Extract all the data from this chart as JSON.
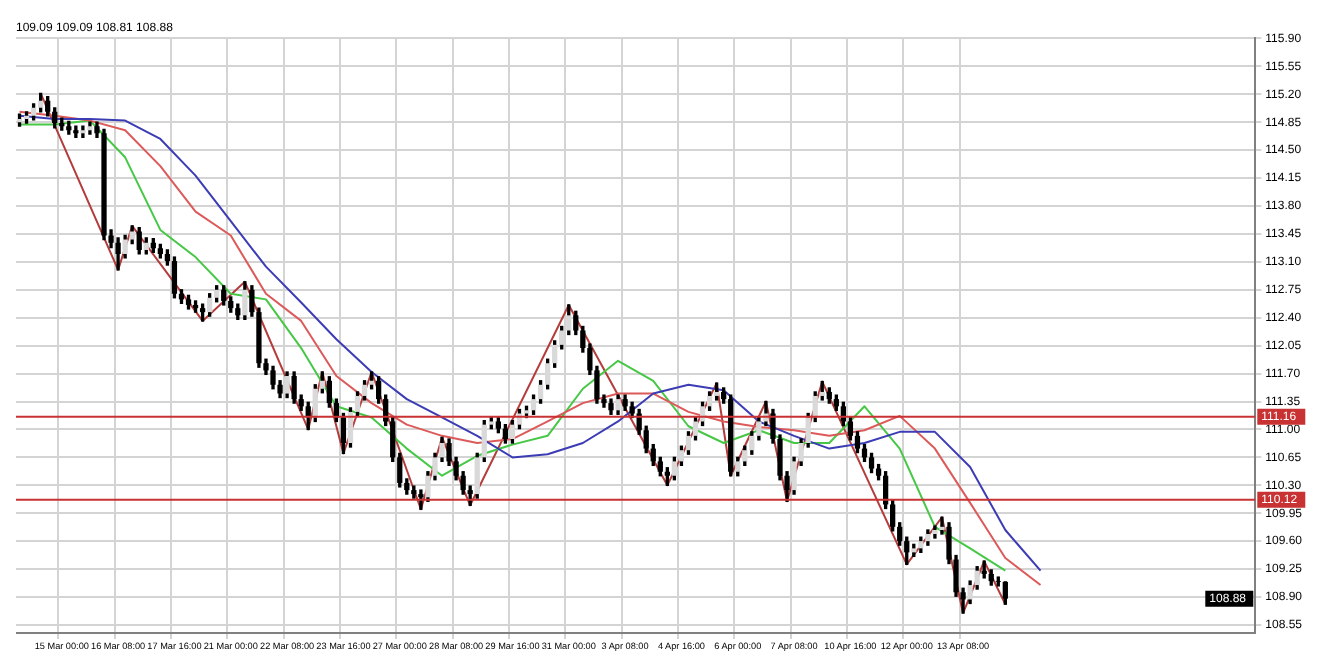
{
  "chart_data": {
    "type": "candlestick",
    "title": "109.09 109.09 108.81 108.88",
    "categories": [
      null,
      null,
      null,
      null,
      null,
      null,
      "15 Mar 00:00",
      null,
      null,
      null,
      null,
      null,
      null,
      null,
      "16 Mar 08:00",
      null,
      null,
      null,
      null,
      null,
      null,
      null,
      "17 Mar 16:00",
      null,
      null,
      null,
      null,
      null,
      null,
      null,
      "21 Mar 00:00",
      null,
      null,
      null,
      null,
      null,
      null,
      null,
      "22 Mar 08:00",
      null,
      null,
      null,
      null,
      null,
      null,
      null,
      "23 Mar 16:00",
      null,
      null,
      null,
      null,
      null,
      null,
      null,
      "27 Mar 00:00",
      null,
      null,
      null,
      null,
      null,
      null,
      null,
      "28 Mar 08:00",
      null,
      null,
      null,
      null,
      null,
      null,
      null,
      "29 Mar 16:00",
      null,
      null,
      null,
      null,
      null,
      null,
      null,
      "31 Mar 00:00",
      null,
      null,
      null,
      null,
      null,
      null,
      null,
      "3 Apr 08:00",
      null,
      null,
      null,
      null,
      null,
      null,
      null,
      "4 Apr 16:00",
      null,
      null,
      null,
      null,
      null,
      null,
      null,
      "6 Apr 00:00",
      null,
      null,
      null,
      null,
      null,
      null,
      null,
      "7 Apr 08:00",
      null,
      null,
      null,
      null,
      null,
      null,
      null,
      "10 Apr 16:00",
      null,
      null,
      null,
      null,
      null,
      null,
      null,
      "12 Apr 00:00",
      null,
      null,
      null,
      null,
      null,
      null,
      null,
      "13 Apr 08:00",
      null,
      null,
      null,
      null,
      null,
      null,
      null,
      null,
      null,
      null,
      null,
      null,
      null,
      null,
      null,
      null,
      null,
      null,
      null,
      null,
      null,
      null,
      null,
      null,
      null,
      null,
      null,
      null,
      null,
      null,
      null,
      null,
      null,
      null,
      null,
      null,
      null,
      null,
      null,
      null,
      null
    ],
    "ohlc": [
      [
        114.85,
        114.95,
        114.8,
        114.89
      ],
      [
        114.89,
        114.98,
        114.84,
        114.93
      ],
      [
        114.93,
        115.08,
        114.88,
        115.03
      ],
      [
        115.03,
        115.21,
        114.98,
        115.12
      ],
      [
        115.12,
        115.17,
        114.93,
        114.98
      ],
      [
        114.98,
        115.03,
        114.78,
        114.84
      ],
      [
        114.84,
        114.9,
        114.75,
        114.8
      ],
      [
        114.8,
        114.86,
        114.7,
        114.75
      ],
      [
        114.75,
        114.8,
        114.66,
        114.71
      ],
      [
        114.71,
        114.8,
        114.66,
        114.75
      ],
      [
        114.75,
        114.85,
        114.7,
        114.8
      ],
      [
        114.8,
        114.85,
        114.66,
        114.71
      ],
      [
        114.71,
        114.76,
        113.38,
        113.43
      ],
      [
        113.43,
        113.5,
        113.28,
        113.34
      ],
      [
        113.34,
        113.4,
        113.0,
        113.2
      ],
      [
        113.2,
        113.43,
        113.15,
        113.38
      ],
      [
        113.38,
        113.55,
        113.33,
        113.48
      ],
      [
        113.48,
        113.53,
        113.2,
        113.25
      ],
      [
        113.25,
        113.4,
        113.2,
        113.34
      ],
      [
        113.34,
        113.39,
        113.22,
        113.27
      ],
      [
        113.27,
        113.32,
        113.15,
        113.2
      ],
      [
        113.2,
        113.25,
        113.06,
        113.11
      ],
      [
        113.11,
        113.16,
        112.65,
        112.7
      ],
      [
        112.7,
        112.75,
        112.58,
        112.63
      ],
      [
        112.63,
        112.68,
        112.51,
        112.56
      ],
      [
        112.56,
        112.61,
        112.47,
        112.52
      ],
      [
        112.52,
        112.57,
        112.36,
        112.47
      ],
      [
        112.47,
        112.7,
        112.42,
        112.65
      ],
      [
        112.65,
        112.8,
        112.6,
        112.75
      ],
      [
        112.75,
        112.8,
        112.56,
        112.61
      ],
      [
        112.61,
        112.66,
        112.47,
        112.52
      ],
      [
        112.52,
        112.57,
        112.38,
        112.43
      ],
      [
        112.43,
        112.85,
        112.38,
        112.75
      ],
      [
        112.75,
        112.8,
        112.42,
        112.47
      ],
      [
        112.47,
        112.52,
        111.78,
        111.83
      ],
      [
        111.83,
        111.88,
        111.69,
        111.74
      ],
      [
        111.74,
        111.79,
        111.51,
        111.56
      ],
      [
        111.56,
        111.61,
        111.4,
        111.45
      ],
      [
        111.45,
        111.72,
        111.4,
        111.67
      ],
      [
        111.67,
        111.72,
        111.33,
        111.38
      ],
      [
        111.38,
        111.43,
        111.24,
        111.29
      ],
      [
        111.29,
        111.34,
        111.0,
        111.15
      ],
      [
        111.15,
        111.56,
        111.1,
        111.51
      ],
      [
        111.51,
        111.72,
        111.46,
        111.61
      ],
      [
        111.61,
        111.66,
        111.28,
        111.33
      ],
      [
        111.33,
        111.38,
        111.1,
        111.15
      ],
      [
        111.15,
        111.2,
        110.7,
        110.83
      ],
      [
        110.83,
        111.27,
        110.78,
        111.22
      ],
      [
        111.22,
        111.47,
        111.17,
        111.42
      ],
      [
        111.42,
        111.61,
        111.37,
        111.56
      ],
      [
        111.56,
        111.72,
        111.51,
        111.61
      ],
      [
        111.61,
        111.66,
        111.33,
        111.38
      ],
      [
        111.38,
        111.43,
        111.05,
        111.1
      ],
      [
        111.1,
        111.15,
        110.6,
        110.65
      ],
      [
        110.65,
        110.7,
        110.28,
        110.33
      ],
      [
        110.33,
        110.38,
        110.19,
        110.24
      ],
      [
        110.24,
        110.29,
        110.14,
        110.19
      ],
      [
        110.19,
        110.24,
        110.0,
        110.15
      ],
      [
        110.15,
        110.47,
        110.1,
        110.42
      ],
      [
        110.42,
        110.7,
        110.37,
        110.65
      ],
      [
        110.65,
        110.9,
        110.6,
        110.83
      ],
      [
        110.83,
        110.88,
        110.55,
        110.6
      ],
      [
        110.6,
        110.65,
        110.37,
        110.42
      ],
      [
        110.42,
        110.47,
        110.19,
        110.24
      ],
      [
        110.24,
        110.29,
        110.05,
        110.19
      ],
      [
        110.19,
        110.7,
        110.14,
        110.65
      ],
      [
        110.65,
        111.11,
        110.6,
        111.06
      ],
      [
        111.06,
        111.15,
        111.01,
        111.1
      ],
      [
        111.1,
        111.15,
        110.96,
        111.01
      ],
      [
        111.01,
        111.06,
        110.83,
        110.88
      ],
      [
        110.88,
        111.11,
        110.83,
        111.06
      ],
      [
        111.06,
        111.25,
        111.01,
        111.2
      ],
      [
        111.2,
        111.29,
        111.15,
        111.24
      ],
      [
        111.24,
        111.43,
        111.19,
        111.38
      ],
      [
        111.38,
        111.61,
        111.33,
        111.56
      ],
      [
        111.56,
        111.88,
        111.51,
        111.83
      ],
      [
        111.83,
        112.11,
        111.78,
        112.06
      ],
      [
        112.06,
        112.29,
        112.01,
        112.24
      ],
      [
        112.24,
        112.56,
        112.19,
        112.43
      ],
      [
        112.43,
        112.48,
        112.19,
        112.24
      ],
      [
        112.24,
        112.29,
        111.97,
        112.02
      ],
      [
        112.02,
        112.07,
        111.69,
        111.74
      ],
      [
        111.74,
        111.79,
        111.33,
        111.38
      ],
      [
        111.38,
        111.43,
        111.28,
        111.33
      ],
      [
        111.33,
        111.38,
        111.19,
        111.24
      ],
      [
        111.24,
        111.43,
        111.19,
        111.38
      ],
      [
        111.38,
        111.43,
        111.24,
        111.29
      ],
      [
        111.29,
        111.34,
        111.15,
        111.2
      ],
      [
        111.2,
        111.25,
        110.94,
        110.99
      ],
      [
        110.99,
        111.04,
        110.71,
        110.76
      ],
      [
        110.76,
        110.81,
        110.55,
        110.6
      ],
      [
        110.6,
        110.65,
        110.42,
        110.47
      ],
      [
        110.47,
        110.52,
        110.3,
        110.42
      ],
      [
        110.42,
        110.65,
        110.37,
        110.6
      ],
      [
        110.6,
        110.79,
        110.55,
        110.74
      ],
      [
        110.74,
        110.97,
        110.69,
        110.92
      ],
      [
        110.92,
        111.15,
        110.87,
        111.1
      ],
      [
        111.1,
        111.34,
        111.05,
        111.29
      ],
      [
        111.29,
        111.47,
        111.24,
        111.42
      ],
      [
        111.42,
        111.58,
        111.37,
        111.47
      ],
      [
        111.47,
        111.52,
        111.33,
        111.38
      ],
      [
        111.38,
        111.43,
        110.42,
        110.47
      ],
      [
        110.47,
        110.65,
        110.42,
        110.6
      ],
      [
        110.6,
        110.79,
        110.55,
        110.74
      ],
      [
        110.74,
        110.97,
        110.69,
        110.92
      ],
      [
        110.92,
        111.15,
        110.87,
        111.1
      ],
      [
        111.1,
        111.35,
        111.05,
        111.2
      ],
      [
        111.2,
        111.25,
        110.83,
        110.88
      ],
      [
        110.88,
        110.93,
        110.37,
        110.42
      ],
      [
        110.42,
        110.47,
        110.1,
        110.24
      ],
      [
        110.24,
        110.65,
        110.19,
        110.6
      ],
      [
        110.6,
        110.88,
        110.55,
        110.83
      ],
      [
        110.83,
        111.2,
        110.78,
        111.15
      ],
      [
        111.15,
        111.47,
        111.1,
        111.42
      ],
      [
        111.42,
        111.6,
        111.37,
        111.47
      ],
      [
        111.47,
        111.52,
        111.33,
        111.38
      ],
      [
        111.38,
        111.43,
        111.24,
        111.29
      ],
      [
        111.29,
        111.34,
        111.05,
        111.1
      ],
      [
        111.1,
        111.15,
        110.87,
        110.92
      ],
      [
        110.92,
        110.97,
        110.71,
        110.76
      ],
      [
        110.76,
        110.81,
        110.6,
        110.65
      ],
      [
        110.65,
        110.7,
        110.46,
        110.51
      ],
      [
        110.51,
        110.56,
        110.37,
        110.42
      ],
      [
        110.42,
        110.47,
        110.01,
        110.06
      ],
      [
        110.06,
        110.11,
        109.73,
        109.78
      ],
      [
        109.78,
        109.83,
        109.55,
        109.6
      ],
      [
        109.6,
        109.65,
        109.31,
        109.46
      ],
      [
        109.46,
        109.56,
        109.41,
        109.51
      ],
      [
        109.51,
        109.65,
        109.46,
        109.6
      ],
      [
        109.6,
        109.74,
        109.55,
        109.69
      ],
      [
        109.69,
        109.79,
        109.64,
        109.74
      ],
      [
        109.74,
        109.9,
        109.69,
        109.78
      ],
      [
        109.78,
        109.83,
        109.32,
        109.37
      ],
      [
        109.37,
        109.42,
        108.91,
        108.96
      ],
      [
        108.96,
        109.01,
        108.7,
        108.87
      ],
      [
        108.87,
        109.1,
        108.82,
        109.05
      ],
      [
        109.05,
        109.28,
        109.0,
        109.23
      ],
      [
        109.23,
        109.35,
        109.14,
        109.19
      ],
      [
        109.19,
        109.24,
        109.05,
        109.1
      ],
      [
        109.1,
        109.15,
        109.04,
        109.09
      ],
      [
        109.09,
        109.09,
        108.81,
        108.88
      ],
      null,
      null,
      null,
      null,
      null,
      null,
      null,
      null,
      null,
      null,
      null,
      null,
      null,
      null,
      null,
      null,
      null,
      null,
      null,
      null,
      null,
      null,
      null,
      null,
      null,
      null,
      null,
      null,
      null,
      null,
      null,
      null,
      null,
      null,
      null
    ],
    "colors": [
      "#d9d9d9",
      "#d9d9d9",
      "#d9d9d9",
      "#d9d9d9",
      "#000000",
      "#000000",
      "#000000",
      "#000000",
      "#000000",
      "#d9d9d9",
      "#d9d9d9",
      "#000000",
      "#000000",
      "#000000",
      "#000000",
      "#d9d9d9",
      "#d9d9d9",
      "#000000",
      "#d9d9d9",
      "#000000",
      "#000000",
      "#000000",
      "#000000",
      "#000000",
      "#000000",
      "#000000",
      "#000000",
      "#d9d9d9",
      "#d9d9d9",
      "#000000",
      "#000000",
      "#000000",
      "#d9d9d9",
      "#000000",
      "#000000",
      "#000000",
      "#000000",
      "#000000",
      "#d9d9d9",
      "#000000",
      "#000000",
      "#000000",
      "#d9d9d9",
      "#d9d9d9",
      "#000000",
      "#000000",
      "#000000",
      "#d9d9d9",
      "#d9d9d9",
      "#d9d9d9",
      "#d9d9d9",
      "#000000",
      "#000000",
      "#000000",
      "#000000",
      "#000000",
      "#000000",
      "#000000",
      "#d9d9d9",
      "#d9d9d9",
      "#d9d9d9",
      "#000000",
      "#000000",
      "#000000",
      "#000000",
      "#d9d9d9",
      "#d9d9d9",
      "#d9d9d9",
      "#000000",
      "#000000",
      "#d9d9d9",
      "#d9d9d9",
      "#d9d9d9",
      "#d9d9d9",
      "#d9d9d9",
      "#d9d9d9",
      "#d9d9d9",
      "#d9d9d9",
      "#d9d9d9",
      "#000000",
      "#000000",
      "#000000",
      "#000000",
      "#000000",
      "#000000",
      "#d9d9d9",
      "#000000",
      "#000000",
      "#000000",
      "#000000",
      "#000000",
      "#000000",
      "#000000",
      "#d9d9d9",
      "#d9d9d9",
      "#d9d9d9",
      "#d9d9d9",
      "#d9d9d9",
      "#d9d9d9",
      "#d9d9d9",
      "#000000",
      "#000000",
      "#d9d9d9",
      "#d9d9d9",
      "#d9d9d9",
      "#d9d9d9",
      "#d9d9d9",
      "#000000",
      "#000000",
      "#000000",
      "#d9d9d9",
      "#d9d9d9",
      "#d9d9d9",
      "#d9d9d9",
      "#d9d9d9",
      "#000000",
      "#000000",
      "#000000",
      "#000000",
      "#000000",
      "#000000",
      "#000000",
      "#000000",
      "#000000",
      "#000000",
      "#000000",
      "#000000",
      "#d9d9d9",
      "#d9d9d9",
      "#d9d9d9",
      "#d9d9d9",
      "#d9d9d9",
      "#000000",
      "#000000",
      "#000000",
      "#d9d9d9",
      "#d9d9d9",
      "#000000",
      "#000000",
      "#000000",
      "#000000",
      null,
      null,
      null,
      null,
      null,
      null,
      null,
      null,
      null,
      null,
      null,
      null,
      null,
      null,
      null,
      null,
      null,
      null,
      null,
      null,
      null,
      null,
      null,
      null,
      null,
      null,
      null,
      null,
      null,
      null,
      null,
      null,
      null,
      null,
      null
    ],
    "series": [
      {
        "type": "line",
        "color": "#3c3cb4",
        "values": [
          114.93,
          null,
          null,
          null,
          null,
          114.89,
          null,
          null,
          null,
          null,
          114.89,
          null,
          null,
          null,
          null,
          114.87,
          null,
          null,
          null,
          null,
          114.64,
          null,
          null,
          null,
          null,
          114.18,
          null,
          null,
          null,
          null,
          113.61,
          null,
          null,
          null,
          null,
          113.04,
          null,
          null,
          null,
          null,
          112.59,
          null,
          null,
          null,
          null,
          112.13,
          null,
          null,
          null,
          null,
          111.72,
          null,
          null,
          null,
          null,
          111.38,
          null,
          null,
          null,
          null,
          111.15,
          null,
          null,
          null,
          null,
          110.92,
          null,
          null,
          null,
          null,
          110.65,
          null,
          null,
          null,
          null,
          110.69,
          null,
          null,
          null,
          null,
          110.83,
          null,
          null,
          null,
          null,
          111.1,
          null,
          null,
          null,
          null,
          111.45,
          null,
          null,
          null,
          null,
          111.56,
          null,
          null,
          null,
          null,
          111.49,
          null,
          null,
          null,
          null,
          111.1,
          null,
          null,
          null,
          null,
          110.92,
          null,
          null,
          null,
          null,
          110.76,
          null,
          null,
          null,
          null,
          110.83,
          null,
          null,
          null,
          null,
          110.97,
          null,
          null,
          null,
          null,
          110.97,
          null,
          null,
          null,
          null,
          110.53,
          null,
          null,
          null,
          null,
          109.74,
          null,
          null,
          null,
          null,
          109.23,
          null,
          null,
          null,
          null,
          null,
          null,
          null,
          null,
          null,
          null,
          null,
          null,
          null,
          null,
          null,
          null,
          null,
          null,
          null,
          null,
          null,
          null,
          null,
          null,
          null,
          null,
          null,
          null,
          null,
          null
        ]
      },
      {
        "type": "line",
        "color": "#dc5a5a",
        "values": [
          114.98,
          null,
          null,
          null,
          null,
          114.93,
          null,
          null,
          null,
          null,
          114.87,
          null,
          null,
          null,
          null,
          114.75,
          null,
          null,
          null,
          null,
          114.3,
          null,
          null,
          null,
          null,
          113.73,
          null,
          null,
          null,
          null,
          113.43,
          null,
          null,
          null,
          null,
          112.7,
          null,
          null,
          null,
          null,
          112.36,
          null,
          null,
          null,
          null,
          111.67,
          null,
          null,
          null,
          null,
          111.33,
          null,
          null,
          null,
          null,
          111.06,
          null,
          null,
          null,
          null,
          110.92,
          null,
          null,
          null,
          null,
          110.83,
          null,
          null,
          null,
          null,
          110.88,
          null,
          null,
          null,
          null,
          111.1,
          null,
          null,
          null,
          null,
          111.33,
          null,
          null,
          null,
          null,
          111.45,
          null,
          null,
          null,
          null,
          111.45,
          null,
          null,
          null,
          null,
          111.22,
          null,
          null,
          null,
          null,
          111.1,
          null,
          null,
          null,
          null,
          111.03,
          null,
          null,
          null,
          null,
          110.99,
          null,
          null,
          null,
          null,
          110.92,
          null,
          null,
          null,
          null,
          110.99,
          null,
          null,
          null,
          null,
          111.17,
          null,
          null,
          null,
          null,
          110.76,
          null,
          null,
          null,
          null,
          110.08,
          null,
          null,
          null,
          null,
          109.39,
          null,
          null,
          null,
          null,
          109.05,
          null,
          null,
          null,
          null,
          null,
          null,
          null,
          null,
          null,
          null,
          null,
          null,
          null,
          null,
          null,
          null,
          null,
          null,
          null,
          null,
          null,
          null,
          null,
          null,
          null,
          null,
          null,
          null,
          null,
          null
        ]
      },
      {
        "type": "line",
        "color": "#46c846",
        "values": [
          114.82,
          null,
          null,
          null,
          null,
          114.82,
          null,
          null,
          null,
          null,
          114.87,
          null,
          null,
          null,
          null,
          114.41,
          null,
          null,
          null,
          null,
          113.5,
          null,
          null,
          null,
          null,
          113.16,
          null,
          null,
          null,
          null,
          112.7,
          null,
          null,
          null,
          null,
          112.63,
          null,
          null,
          null,
          null,
          112.02,
          null,
          null,
          null,
          null,
          111.29,
          null,
          null,
          null,
          null,
          111.15,
          null,
          null,
          null,
          null,
          110.76,
          null,
          null,
          null,
          null,
          110.42,
          null,
          null,
          null,
          null,
          110.67,
          null,
          null,
          null,
          null,
          110.81,
          null,
          null,
          null,
          null,
          110.92,
          null,
          null,
          null,
          null,
          111.51,
          null,
          null,
          null,
          null,
          111.86,
          null,
          null,
          null,
          null,
          111.61,
          null,
          null,
          null,
          null,
          111.04,
          null,
          null,
          null,
          null,
          110.83,
          null,
          null,
          null,
          null,
          110.99,
          null,
          null,
          null,
          null,
          110.83,
          null,
          null,
          null,
          null,
          110.83,
          null,
          null,
          null,
          null,
          111.29,
          null,
          null,
          null,
          null,
          110.76,
          null,
          null,
          null,
          null,
          109.78,
          null,
          null,
          null,
          null,
          109.51,
          null,
          null,
          null,
          null,
          109.23,
          null,
          null,
          null,
          null,
          null,
          null,
          null,
          null,
          null,
          null,
          null,
          null,
          null,
          null,
          null,
          null,
          null,
          null,
          null,
          null,
          null,
          null,
          null,
          null,
          null,
          null,
          null,
          null,
          null,
          null,
          null,
          null,
          null,
          null,
          null
        ]
      },
      {
        "type": "line",
        "color": "#b43c3c",
        "values": [
          null,
          null,
          null,
          115.21,
          null,
          null,
          null,
          null,
          null,
          null,
          null,
          null,
          null,
          null,
          113.0,
          null,
          113.55,
          null,
          null,
          null,
          null,
          null,
          null,
          null,
          null,
          null,
          112.36,
          null,
          null,
          null,
          null,
          null,
          112.85,
          null,
          null,
          null,
          null,
          null,
          null,
          null,
          null,
          111.0,
          null,
          111.72,
          null,
          null,
          110.7,
          null,
          null,
          null,
          111.72,
          null,
          null,
          null,
          null,
          null,
          null,
          110.0,
          null,
          null,
          110.9,
          null,
          null,
          null,
          110.05,
          null,
          null,
          null,
          null,
          null,
          null,
          null,
          null,
          null,
          null,
          null,
          null,
          null,
          112.56,
          null,
          null,
          null,
          null,
          null,
          null,
          null,
          null,
          null,
          null,
          null,
          null,
          null,
          110.3,
          null,
          null,
          null,
          null,
          null,
          null,
          111.58,
          null,
          110.42,
          null,
          null,
          null,
          null,
          111.35,
          null,
          null,
          110.1,
          null,
          null,
          null,
          null,
          111.6,
          null,
          null,
          null,
          null,
          null,
          null,
          null,
          null,
          null,
          null,
          null,
          109.31,
          null,
          null,
          null,
          null,
          109.9,
          null,
          null,
          108.7,
          null,
          null,
          109.35,
          null,
          null,
          108.81,
          null,
          null,
          null,
          null,
          null,
          null,
          null,
          null,
          null,
          null,
          null,
          null,
          null,
          null,
          null,
          null,
          null,
          null,
          null,
          null,
          null,
          null,
          null,
          null,
          null,
          null,
          null,
          null,
          null,
          null,
          null,
          null,
          null,
          null,
          null
        ]
      }
    ],
    "ylim": [
      108.45,
      115.9
    ],
    "yticks": [
      108.55,
      {
        "value": 108.9,
        "label": "108.90"
      },
      109.25,
      {
        "value": 109.6,
        "label": "109.60"
      },
      109.95,
      {
        "value": 110.3,
        "label": "110.30"
      },
      110.65,
      {
        "value": 111,
        "label": "111.00"
      },
      111.35,
      {
        "value": 111.7,
        "label": "111.70"
      },
      112.05,
      {
        "value": 112.4,
        "label": "112.40"
      },
      112.75,
      {
        "value": 113.1,
        "label": "113.10"
      },
      113.45,
      {
        "value": 113.8,
        "label": "113.80"
      },
      114.15,
      {
        "value": 114.5,
        "label": "114.50"
      },
      114.85,
      {
        "value": 115.2,
        "label": "115.20"
      },
      115.55,
      {
        "value": 115.9,
        "label": "115.90"
      }
    ],
    "grid": true,
    "ref_lines": [
      {
        "axis": "y",
        "value": 111.16,
        "label": "111.16",
        "color": "#c83232"
      },
      {
        "axis": "y",
        "value": 110.12,
        "label": "110.12",
        "color": "#c83232"
      }
    ],
    "annotations": [
      {
        "text": "108.88",
        "y": 108.88
      }
    ]
  }
}
